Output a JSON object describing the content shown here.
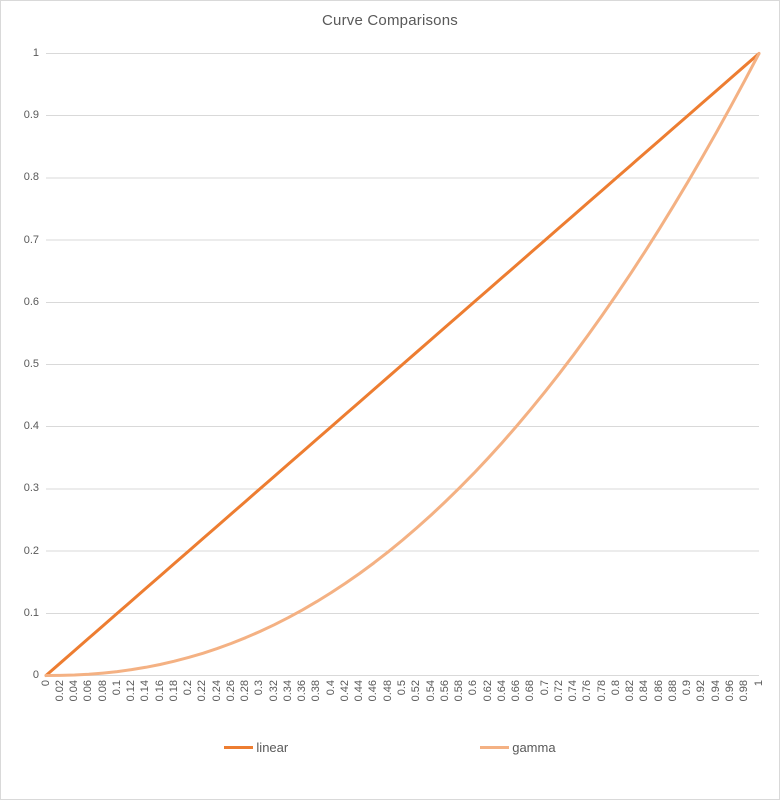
{
  "chart_data": {
    "type": "line",
    "title": "Curve Comparisons",
    "xlabel": "",
    "ylabel": "",
    "xlim": [
      0,
      1
    ],
    "ylim": [
      0,
      1
    ],
    "grid": "horizontal",
    "legend_position": "bottom",
    "categories": [
      "0",
      "0.02",
      "0.04",
      "0.06",
      "0.08",
      "0.1",
      "0.12",
      "0.14",
      "0.16",
      "0.18",
      "0.2",
      "0.22",
      "0.24",
      "0.26",
      "0.28",
      "0.3",
      "0.32",
      "0.34",
      "0.36",
      "0.38",
      "0.4",
      "0.42",
      "0.44",
      "0.46",
      "0.48",
      "0.5",
      "0.52",
      "0.54",
      "0.56",
      "0.58",
      "0.6",
      "0.62",
      "0.64",
      "0.66",
      "0.68",
      "0.7",
      "0.72",
      "0.74",
      "0.76",
      "0.78",
      "0.8",
      "0.82",
      "0.84",
      "0.86",
      "0.88",
      "0.9",
      "0.92",
      "0.94",
      "0.96",
      "0.98",
      "1"
    ],
    "yticks": [
      "1",
      "0.9",
      "0.8",
      "0.7",
      "0.6",
      "0.5",
      "0.4",
      "0.3",
      "0.2",
      "0.1",
      "0"
    ],
    "series": [
      {
        "name": "linear",
        "color": "#ED7D31",
        "values": [
          0,
          0.02,
          0.04,
          0.06,
          0.08,
          0.1,
          0.12,
          0.14,
          0.16,
          0.18,
          0.2,
          0.22,
          0.24,
          0.26,
          0.28,
          0.3,
          0.32,
          0.34,
          0.36,
          0.38,
          0.4,
          0.42,
          0.44,
          0.46,
          0.48,
          0.5,
          0.52,
          0.54,
          0.56,
          0.58,
          0.6,
          0.62,
          0.64,
          0.66,
          0.68,
          0.7,
          0.72,
          0.74,
          0.76,
          0.78,
          0.8,
          0.82,
          0.84,
          0.86,
          0.88,
          0.9,
          0.92,
          0.94,
          0.96,
          0.98,
          1
        ]
      },
      {
        "name": "gamma",
        "color": "#F4B183",
        "values": [
          0,
          0.0002,
          0.0008,
          0.002,
          0.0039,
          0.0063,
          0.0094,
          0.0132,
          0.0177,
          0.023,
          0.029,
          0.0357,
          0.0433,
          0.0516,
          0.0608,
          0.0707,
          0.0815,
          0.0931,
          0.1056,
          0.119,
          0.1332,
          0.1483,
          0.1642,
          0.1811,
          0.1989,
          0.2176,
          0.2373,
          0.2578,
          0.2793,
          0.3017,
          0.325,
          0.3494,
          0.3746,
          0.4009,
          0.4281,
          0.4563,
          0.4854,
          0.5156,
          0.5468,
          0.5789,
          0.6121,
          0.6462,
          0.6814,
          0.7176,
          0.7549,
          0.7931,
          0.8324,
          0.8727,
          0.9141,
          0.9565,
          1
        ]
      }
    ],
    "colors": {
      "gridline": "#D9D9D9",
      "axis_text": "#595959",
      "title_text": "#595959",
      "border": "#D9D9D9",
      "background": "#FFFFFF"
    }
  }
}
